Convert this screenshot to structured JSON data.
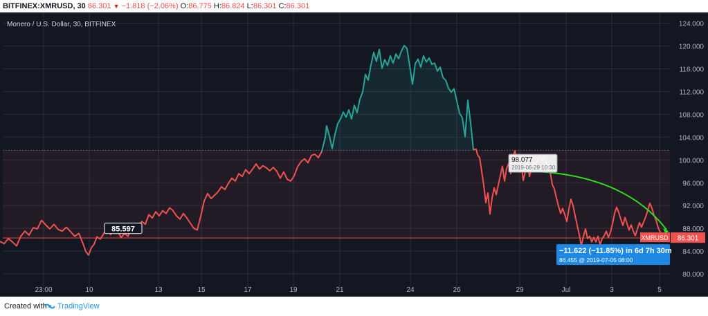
{
  "header": {
    "symbol": "BITFINEX:XMRUSD, 30",
    "last": "86.301",
    "change": "−1.818 (−2.06%)",
    "open_label": "O:",
    "open": "86.775",
    "high_label": "H:",
    "high": "86.824",
    "low_label": "L:",
    "low": "86.301",
    "close_label": "C:",
    "close": "86.301"
  },
  "chart_title": "Monero / U.S. Dollar, 30, BITFINEX",
  "footer": {
    "created_label": "Created with",
    "brand": "TradingView"
  },
  "colors": {
    "up": "#26a69a",
    "down": "#ef5350",
    "background": "#131722",
    "grid": "#2a2e39",
    "curve": "#2ede1c",
    "measure": "#1e88e5"
  },
  "chart_data": {
    "type": "line",
    "series": [
      {
        "name": "XMRUSD",
        "values": [
          [
            0,
            85.7
          ],
          [
            6,
            85.3
          ],
          [
            12,
            86.2
          ],
          [
            18,
            85.6
          ],
          [
            24,
            84.9
          ],
          [
            30,
            86.6
          ],
          [
            36,
            87.5
          ],
          [
            42,
            86.8
          ],
          [
            48,
            88.1
          ],
          [
            54,
            87.9
          ],
          [
            60,
            89.4
          ],
          [
            66,
            88.6
          ],
          [
            72,
            87.9
          ],
          [
            78,
            88.7
          ],
          [
            84,
            87.8
          ],
          [
            90,
            87.5
          ],
          [
            96,
            88.2
          ],
          [
            102,
            87.4
          ],
          [
            108,
            86.6
          ],
          [
            114,
            87.1
          ],
          [
            120,
            85.3
          ],
          [
            124,
            83.9
          ],
          [
            128,
            83.3
          ],
          [
            132,
            84.6
          ],
          [
            136,
            85.2
          ],
          [
            140,
            86.5
          ],
          [
            145,
            86.1
          ],
          [
            150,
            87.1
          ],
          [
            155,
            88.0
          ],
          [
            160,
            86.9
          ],
          [
            165,
            88.6
          ],
          [
            170,
            87.5
          ],
          [
            175,
            86.4
          ],
          [
            180,
            87.1
          ],
          [
            185,
            86.6
          ],
          [
            190,
            88.1
          ],
          [
            195,
            87.8
          ],
          [
            200,
            88.4
          ],
          [
            205,
            89.2
          ],
          [
            210,
            88.7
          ],
          [
            215,
            90.4
          ],
          [
            220,
            89.8
          ],
          [
            225,
            90.9
          ],
          [
            230,
            90.2
          ],
          [
            235,
            91.1
          ],
          [
            240,
            90.6
          ],
          [
            245,
            91.6
          ],
          [
            250,
            91.1
          ],
          [
            255,
            90.2
          ],
          [
            260,
            89.6
          ],
          [
            265,
            90.6
          ],
          [
            270,
            89.8
          ],
          [
            275,
            88.9
          ],
          [
            280,
            88.0
          ],
          [
            285,
            87.7
          ],
          [
            290,
            90.1
          ],
          [
            295,
            92.8
          ],
          [
            300,
            94.1
          ],
          [
            305,
            93.2
          ],
          [
            310,
            93.8
          ],
          [
            315,
            94.4
          ],
          [
            320,
            95.3
          ],
          [
            325,
            94.8
          ],
          [
            330,
            95.9
          ],
          [
            335,
            96.8
          ],
          [
            340,
            96.3
          ],
          [
            345,
            97.6
          ],
          [
            350,
            97.1
          ],
          [
            355,
            98.3
          ],
          [
            360,
            97.6
          ],
          [
            365,
            98.4
          ],
          [
            370,
            99.3
          ],
          [
            375,
            98.4
          ],
          [
            380,
            99.0
          ],
          [
            385,
            98.6
          ],
          [
            390,
            98.1
          ],
          [
            395,
            98.7
          ],
          [
            400,
            98.0
          ],
          [
            405,
            96.8
          ],
          [
            410,
            97.9
          ],
          [
            415,
            96.6
          ],
          [
            420,
            96.3
          ],
          [
            425,
            97.2
          ],
          [
            430,
            98.8
          ],
          [
            435,
            99.7
          ],
          [
            440,
            100.2
          ],
          [
            445,
            99.5
          ],
          [
            450,
            100.8
          ],
          [
            455,
            101.0
          ],
          [
            460,
            100.4
          ],
          [
            465,
            101.5
          ],
          [
            470,
            104.0
          ],
          [
            472,
            106.0
          ],
          [
            476,
            104.2
          ],
          [
            480,
            102.0
          ],
          [
            484,
            104.5
          ],
          [
            488,
            106.4
          ],
          [
            492,
            107.2
          ],
          [
            496,
            108.4
          ],
          [
            500,
            107.5
          ],
          [
            504,
            108.8
          ],
          [
            508,
            107.2
          ],
          [
            512,
            109.6
          ],
          [
            516,
            108.3
          ],
          [
            520,
            110.7
          ],
          [
            524,
            111.9
          ],
          [
            528,
            115.0
          ],
          [
            532,
            114.0
          ],
          [
            536,
            116.7
          ],
          [
            540,
            118.9
          ],
          [
            544,
            117.3
          ],
          [
            548,
            119.4
          ],
          [
            552,
            116.1
          ],
          [
            556,
            117.6
          ],
          [
            560,
            116.6
          ],
          [
            564,
            118.3
          ],
          [
            568,
            117.0
          ],
          [
            572,
            118.6
          ],
          [
            576,
            117.8
          ],
          [
            580,
            119.1
          ],
          [
            584,
            120.1
          ],
          [
            588,
            119.6
          ],
          [
            592,
            116.5
          ],
          [
            596,
            113.3
          ],
          [
            600,
            116.9
          ],
          [
            604,
            117.7
          ],
          [
            608,
            116.3
          ],
          [
            612,
            118.3
          ],
          [
            616,
            117.2
          ],
          [
            620,
            117.9
          ],
          [
            624,
            116.8
          ],
          [
            628,
            117.0
          ],
          [
            632,
            115.6
          ],
          [
            636,
            116.3
          ],
          [
            640,
            114.5
          ],
          [
            644,
            114.0
          ],
          [
            648,
            112.6
          ],
          [
            652,
            111.9
          ],
          [
            656,
            112.5
          ],
          [
            660,
            110.4
          ],
          [
            664,
            108.2
          ],
          [
            668,
            107.4
          ],
          [
            672,
            104.1
          ],
          [
            676,
            110.5
          ],
          [
            680,
            106.5
          ],
          [
            684,
            101.8
          ],
          [
            688,
            101.9
          ],
          [
            690,
            100.9
          ],
          [
            693,
            100.4
          ],
          [
            696,
            98.0
          ],
          [
            699,
            95.5
          ],
          [
            702,
            92.5
          ],
          [
            705,
            94.2
          ],
          [
            708,
            90.5
          ],
          [
            711,
            93.3
          ],
          [
            714,
            95.1
          ],
          [
            717,
            93.9
          ],
          [
            720,
            95.6
          ],
          [
            723,
            97.3
          ],
          [
            726,
            98.9
          ],
          [
            729,
            96.3
          ],
          [
            732,
            98.5
          ],
          [
            735,
            99.4
          ],
          [
            738,
            97.6
          ],
          [
            741,
            100.3
          ],
          [
            744,
            101.6
          ],
          [
            747,
            99.6
          ],
          [
            750,
            101.0
          ],
          [
            753,
            99.3
          ],
          [
            756,
            96.4
          ],
          [
            759,
            97.9
          ],
          [
            762,
            99.8
          ],
          [
            765,
            97.1
          ],
          [
            768,
            98.4
          ],
          [
            771,
            99.7
          ],
          [
            774,
            98.7
          ],
          [
            777,
            100.3
          ],
          [
            780,
            100.6
          ],
          [
            783,
            99.9
          ],
          [
            786,
            100.7
          ],
          [
            789,
            99.6
          ],
          [
            792,
            98.4
          ],
          [
            795,
            97.9
          ],
          [
            798,
            95.7
          ],
          [
            801,
            94.9
          ],
          [
            804,
            93.3
          ],
          [
            807,
            91.9
          ],
          [
            810,
            90.6
          ],
          [
            813,
            91.5
          ],
          [
            816,
            90.4
          ],
          [
            819,
            89.2
          ],
          [
            822,
            91.4
          ],
          [
            825,
            93.1
          ],
          [
            828,
            92.0
          ],
          [
            831,
            90.2
          ],
          [
            834,
            88.5
          ],
          [
            837,
            86.9
          ],
          [
            840,
            84.9
          ],
          [
            843,
            86.6
          ],
          [
            846,
            87.9
          ],
          [
            849,
            86.2
          ],
          [
            852,
            86.6
          ],
          [
            855,
            85.6
          ],
          [
            858,
            86.4
          ],
          [
            861,
            85.6
          ],
          [
            864,
            86.6
          ],
          [
            867,
            85.1
          ],
          [
            870,
            86.2
          ],
          [
            873,
            86.7
          ],
          [
            876,
            87.5
          ],
          [
            879,
            86.4
          ],
          [
            882,
            87.3
          ],
          [
            885,
            88.8
          ],
          [
            888,
            90.6
          ],
          [
            891,
            91.7
          ],
          [
            894,
            90.8
          ],
          [
            897,
            89.6
          ],
          [
            900,
            88.5
          ],
          [
            903,
            89.9
          ],
          [
            906,
            88.8
          ],
          [
            909,
            87.7
          ],
          [
            912,
            88.6
          ],
          [
            915,
            87.5
          ],
          [
            918,
            86.7
          ],
          [
            921,
            87.9
          ],
          [
            924,
            89.0
          ],
          [
            927,
            88.2
          ],
          [
            930,
            89.1
          ],
          [
            933,
            90.0
          ],
          [
            936,
            91.2
          ],
          [
            939,
            92.4
          ],
          [
            942,
            91.5
          ],
          [
            945,
            90.3
          ],
          [
            948,
            89.4
          ],
          [
            951,
            88.1
          ],
          [
            954,
            87.3
          ],
          [
            957,
            86.8
          ],
          [
            960,
            86.3
          ]
        ]
      }
    ],
    "x_ticks": [
      {
        "label": "23:00",
        "px": 63
      },
      {
        "label": "10",
        "px": 129
      },
      {
        "label": "13",
        "px": 229
      },
      {
        "label": "15",
        "px": 291
      },
      {
        "label": "17",
        "px": 358
      },
      {
        "label": "19",
        "px": 424
      },
      {
        "label": "21",
        "px": 491
      },
      {
        "label": "24",
        "px": 593
      },
      {
        "label": "26",
        "px": 660
      },
      {
        "label": "29",
        "px": 751
      },
      {
        "label": "Jul",
        "px": 818
      },
      {
        "label": "3",
        "px": 884
      },
      {
        "label": "5",
        "px": 953
      }
    ],
    "y_ticks": [
      80,
      84,
      88,
      92,
      96,
      100,
      104,
      108,
      112,
      116,
      120,
      124
    ],
    "y_tick_labels": [
      "80.000",
      "84.000",
      "88.000",
      "92.000",
      "96.000",
      "100.000",
      "104.000",
      "108.000",
      "112.000",
      "116.000",
      "120.000",
      "124.000"
    ],
    "ylim": [
      77.7,
      125.9
    ],
    "baseline": 86.301,
    "upper_level": 101.7,
    "annotations": {
      "left_label": "85.597",
      "peak_label": "98.077",
      "peak_sub": "2019-06-29 10:30",
      "measure_main": "−11.622 (−11.85%) in 6d 7h 30m",
      "measure_sub": "86.455  @ 2019-07-05  08:00",
      "price_tag_name": "XMRUSD",
      "price_tag_value": "86.301"
    }
  }
}
